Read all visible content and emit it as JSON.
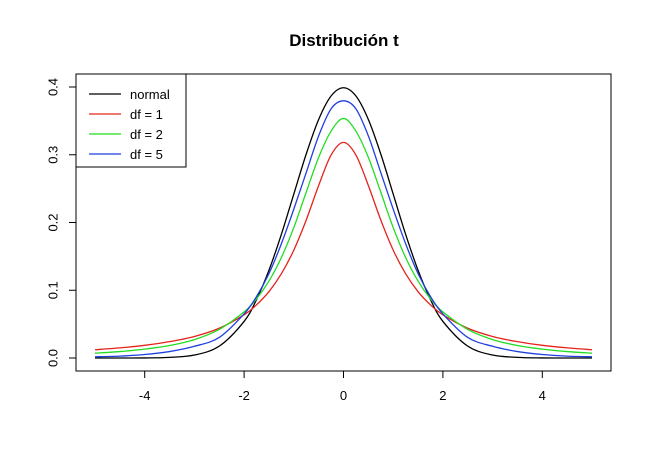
{
  "chart_data": {
    "type": "line",
    "title": "Distribución t",
    "xlabel": "",
    "ylabel": "",
    "xlim": [
      -5,
      5
    ],
    "ylim": [
      0,
      0.4
    ],
    "x_ticks": [
      "-4",
      "-2",
      "0",
      "2",
      "4"
    ],
    "y_ticks": [
      "0.0",
      "0.1",
      "0.2",
      "0.3",
      "0.4"
    ],
    "legend_position": "top-left",
    "grid": false,
    "x": [
      -5,
      -4.5,
      -4,
      -3.5,
      -3,
      -2.5,
      -2,
      -1.75,
      -1.5,
      -1.25,
      -1,
      -0.75,
      -0.5,
      -0.25,
      0,
      0.25,
      0.5,
      0.75,
      1,
      1.25,
      1.5,
      1.75,
      2,
      2.5,
      3,
      3.5,
      4,
      4.5,
      5
    ],
    "series": [
      {
        "name": "normal",
        "color": "#000000",
        "values": [
          0.0,
          0.0,
          0.0001,
          0.0009,
          0.0044,
          0.0175,
          0.054,
          0.0863,
          0.1295,
          0.1826,
          0.242,
          0.3011,
          0.3521,
          0.3867,
          0.3989,
          0.3867,
          0.3521,
          0.3011,
          0.242,
          0.1826,
          0.1295,
          0.0863,
          0.054,
          0.0175,
          0.0044,
          0.0009,
          0.0001,
          0.0,
          0.0
        ]
      },
      {
        "name": "df = 1",
        "color": "#e5231b",
        "values": [
          0.0122,
          0.0149,
          0.0187,
          0.0241,
          0.0318,
          0.0439,
          0.0637,
          0.0785,
          0.0979,
          0.1244,
          0.1592,
          0.2037,
          0.2546,
          0.2996,
          0.3183,
          0.2996,
          0.2546,
          0.2037,
          0.1592,
          0.1244,
          0.0979,
          0.0785,
          0.0637,
          0.0439,
          0.0318,
          0.0241,
          0.0187,
          0.0149,
          0.0122
        ]
      },
      {
        "name": "df = 2",
        "color": "#22dd22",
        "values": [
          0.0071,
          0.0095,
          0.0131,
          0.0185,
          0.0272,
          0.0422,
          0.068,
          0.0873,
          0.1135,
          0.1483,
          0.1925,
          0.2448,
          0.2962,
          0.3348,
          0.3536,
          0.3348,
          0.2962,
          0.2448,
          0.1925,
          0.1483,
          0.1135,
          0.0873,
          0.068,
          0.0422,
          0.0272,
          0.0185,
          0.0131,
          0.0095,
          0.0071
        ]
      },
      {
        "name": "df = 5",
        "color": "#1f3fe0",
        "values": [
          0.0018,
          0.0028,
          0.0051,
          0.0095,
          0.0173,
          0.0304,
          0.0651,
          0.0906,
          0.1245,
          0.1687,
          0.2197,
          0.2737,
          0.3279,
          0.3678,
          0.3796,
          0.3678,
          0.3279,
          0.2737,
          0.2197,
          0.1687,
          0.1245,
          0.0906,
          0.0651,
          0.0304,
          0.0173,
          0.0095,
          0.0051,
          0.0028,
          0.0018
        ]
      }
    ]
  }
}
